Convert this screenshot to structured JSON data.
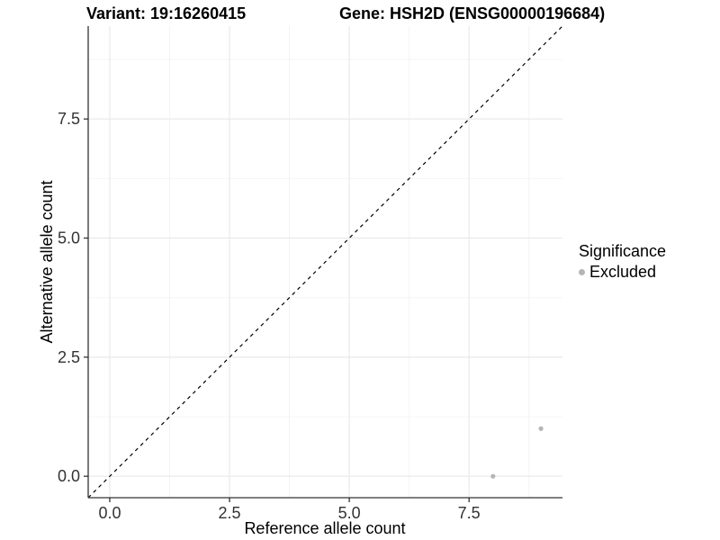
{
  "header": {
    "variant_title": "Variant: 19:16260415",
    "gene_title": "Gene: HSH2D (ENSG00000196684)"
  },
  "legend": {
    "title": "Significance",
    "items": [
      {
        "label": "Excluded",
        "color": "#b5b5b5",
        "marker": "point"
      }
    ]
  },
  "chart_data": {
    "type": "scatter",
    "title": "Variant: 19:16260415 / Gene: HSH2D (ENSG00000196684)",
    "xlabel": "Reference allele count",
    "ylabel": "Alternative allele count",
    "xlim": [
      -0.45,
      9.45
    ],
    "ylim": [
      -0.45,
      9.45
    ],
    "x_ticks": [
      0,
      2.5,
      5,
      7.5
    ],
    "y_ticks": [
      0,
      2.5,
      5,
      7.5
    ],
    "x_tick_labels": [
      "0.0",
      "2.5",
      "5.0",
      "7.5"
    ],
    "y_tick_labels": [
      "0.0",
      "2.5",
      "5.0",
      "7.5"
    ],
    "x_minor_ticks": [
      1.25,
      3.75,
      6.25,
      8.75
    ],
    "y_minor_ticks": [
      1.25,
      3.75,
      6.25,
      8.75
    ],
    "grid": true,
    "legend_position": "right",
    "series": [
      {
        "name": "Excluded",
        "color": "#b5b5b5",
        "points": [
          {
            "x": 8,
            "y": 0
          },
          {
            "x": 9,
            "y": 1
          }
        ]
      }
    ],
    "reference_line": {
      "type": "identity",
      "slope": 1,
      "intercept": 0,
      "style": "dashed",
      "color": "#000000"
    }
  },
  "colors": {
    "background": "#ffffff",
    "axis_line": "#333333",
    "tick_text": "#333333",
    "grid_major": "#e9e9e9",
    "grid_minor": "#f4f4f4",
    "point": "#b5b5b5"
  }
}
